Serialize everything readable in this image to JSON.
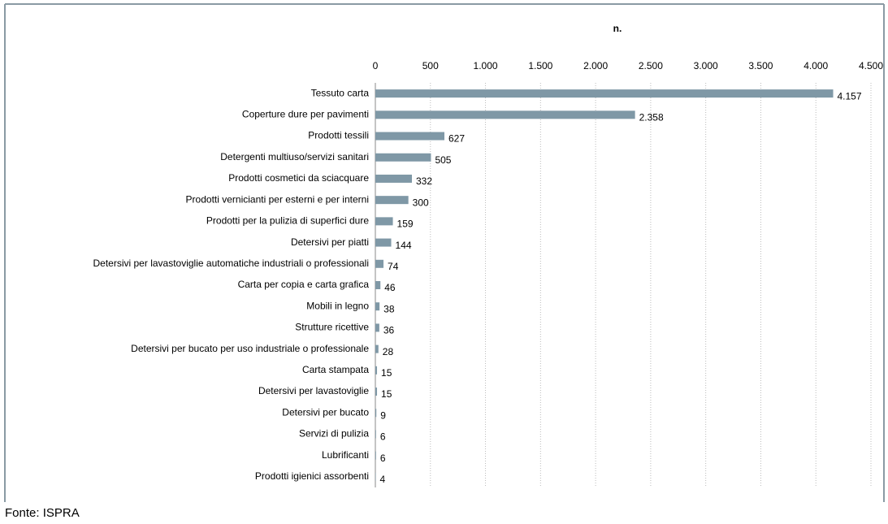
{
  "chart_data": {
    "type": "bar",
    "orientation": "horizontal",
    "axis_label": "n.",
    "source": "Fonte: ISPRA",
    "categories": [
      "Tessuto carta",
      "Coperture dure per pavimenti",
      "Prodotti tessili",
      "Detergenti multiuso/servizi sanitari",
      "Prodotti cosmetici da sciacquare",
      "Prodotti vernicianti per esterni e per interni",
      "Prodotti per la pulizia di superfici dure",
      "Detersivi per piatti",
      "Detersivi per lavastoviglie automatiche industriali o professionali",
      "Carta per copia e carta grafica",
      "Mobili in legno",
      "Strutture ricettive",
      "Detersivi per bucato per uso industriale o professionale",
      "Carta stampata",
      "Detersivi per lavastoviglie",
      "Detersivi per bucato",
      "Servizi di pulizia",
      "Lubrificanti",
      "Prodotti igienici assorbenti"
    ],
    "values": [
      4157,
      2358,
      627,
      505,
      332,
      300,
      159,
      144,
      74,
      46,
      38,
      36,
      28,
      15,
      15,
      9,
      6,
      6,
      4
    ],
    "value_labels": [
      "4.157",
      "2.358",
      "627",
      "505",
      "332",
      "300",
      "159",
      "144",
      "74",
      "46",
      "38",
      "36",
      "28",
      "15",
      "15",
      "9",
      "6",
      "6",
      "4"
    ],
    "color": "#7f98a6",
    "xlim": [
      0,
      4500
    ],
    "xticks": [
      0,
      500,
      {
        "value": 1000,
        "label": "1.000"
      },
      {
        "value": 1500,
        "label": "1.500"
      },
      {
        "value": 2000,
        "label": "2.000"
      },
      {
        "value": 2500,
        "label": "2.500"
      },
      {
        "value": 3000,
        "label": "3.000"
      },
      {
        "value": 3500,
        "label": "3.500"
      },
      {
        "value": 4000,
        "label": "4.000"
      },
      {
        "value": 4500,
        "label": "4.500"
      }
    ],
    "grid": true
  }
}
